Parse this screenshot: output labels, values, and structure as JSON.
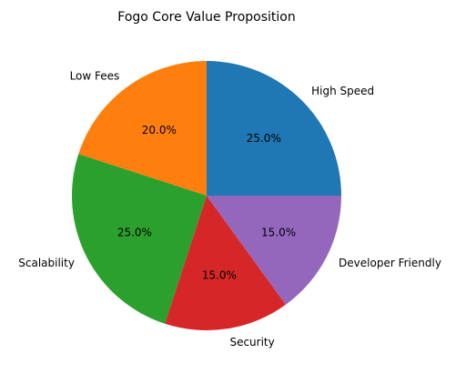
{
  "chart_data": {
    "type": "pie",
    "title": "Fogo Core Value Proposition",
    "categories": [
      "High Speed",
      "Low Fees",
      "Scalability",
      "Security",
      "Developer Friendly"
    ],
    "values": [
      25,
      20,
      25,
      15,
      15
    ],
    "percent_labels": [
      "25.0%",
      "20.0%",
      "25.0%",
      "15.0%",
      "15.0%"
    ],
    "colors": [
      "#1f77b4",
      "#ff7f0e",
      "#2ca02c",
      "#d62728",
      "#9467bd"
    ],
    "start_angle_deg": 0,
    "direction": "counterclockwise",
    "legend": "none"
  }
}
